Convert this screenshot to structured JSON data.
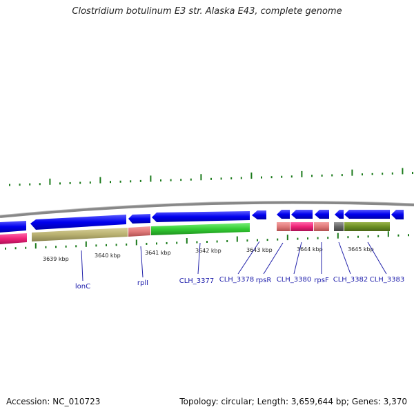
{
  "title": "Clostridium botulinum E3 str. Alaska E43, complete genome",
  "footer": {
    "accession": "Accession: NC_010723",
    "summary": "Topology: circular; Length: 3,659,644 bp; Genes: 3,370"
  },
  "scale_labels": [
    "3639 kbp",
    "3640 kbp",
    "3641 kbp",
    "3642 kbp",
    "3643 kbp",
    "3644 kbp",
    "3645 kbp"
  ],
  "gene_labels": [
    "lonC",
    "rplI",
    "CLH_3377",
    "CLH_3378",
    "rpsR",
    "CLH_3380",
    "rpsF",
    "CLH_3382",
    "CLH_3383"
  ],
  "colors": {
    "cds": "#0000ee",
    "backbone": "#888888",
    "tick": "#1a7a1a",
    "label": "#1a1aaa",
    "magenta": "#ee2277",
    "khaki": "#b8b070",
    "salmon": "#e07a7a",
    "green": "#33cc33",
    "grey": "#666666",
    "olive": "#6b8e23"
  }
}
